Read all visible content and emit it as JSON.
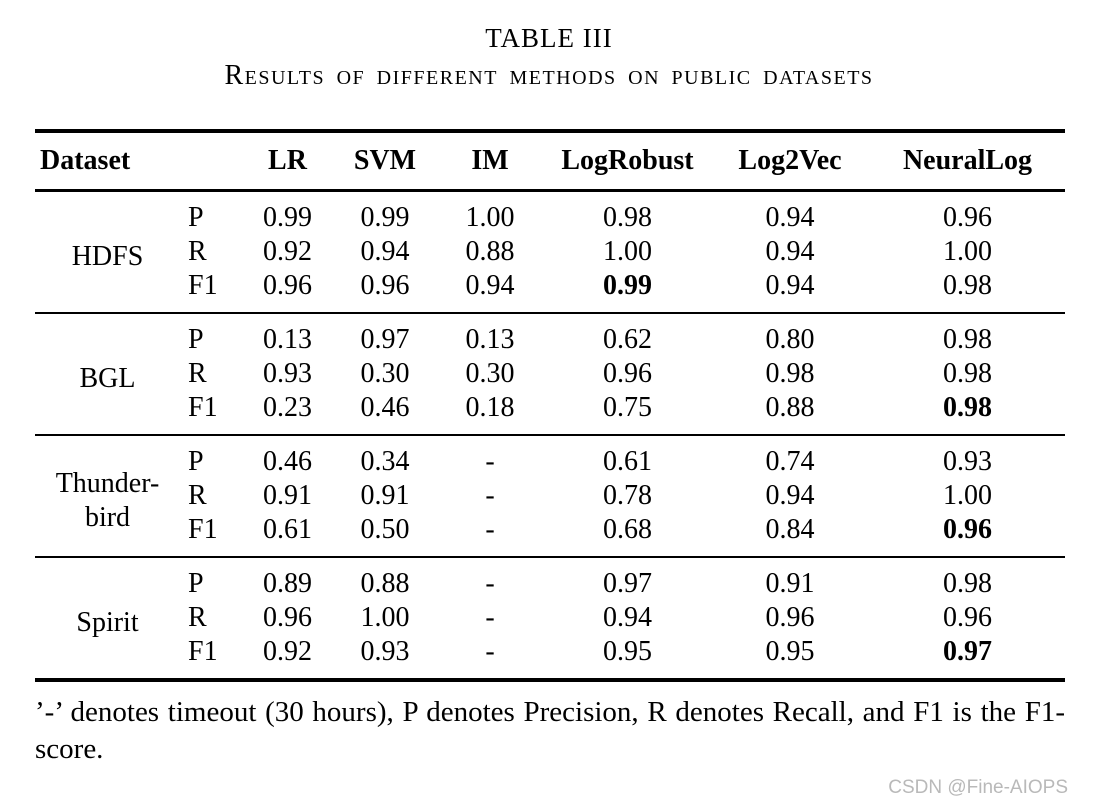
{
  "title": "TABLE III",
  "subtitle": "Results of different methods on public datasets",
  "table": {
    "header": {
      "dataset_label": "Dataset",
      "method_labels": [
        "LR",
        "SVM",
        "IM",
        "LogRobust",
        "Log2Vec",
        "NeuralLog"
      ]
    },
    "groups": [
      {
        "dataset_lines": [
          "HDFS"
        ],
        "rows": [
          {
            "metric": "P",
            "values": [
              "0.99",
              "0.99",
              "1.00",
              "0.98",
              "0.94",
              "0.96"
            ],
            "bold_index": -1
          },
          {
            "metric": "R",
            "values": [
              "0.92",
              "0.94",
              "0.88",
              "1.00",
              "0.94",
              "1.00"
            ],
            "bold_index": -1
          },
          {
            "metric": "F1",
            "values": [
              "0.96",
              "0.96",
              "0.94",
              "0.99",
              "0.94",
              "0.98"
            ],
            "bold_index": 3
          }
        ]
      },
      {
        "dataset_lines": [
          "BGL"
        ],
        "rows": [
          {
            "metric": "P",
            "values": [
              "0.13",
              "0.97",
              "0.13",
              "0.62",
              "0.80",
              "0.98"
            ],
            "bold_index": -1
          },
          {
            "metric": "R",
            "values": [
              "0.93",
              "0.30",
              "0.30",
              "0.96",
              "0.98",
              "0.98"
            ],
            "bold_index": -1
          },
          {
            "metric": "F1",
            "values": [
              "0.23",
              "0.46",
              "0.18",
              "0.75",
              "0.88",
              "0.98"
            ],
            "bold_index": 5
          }
        ]
      },
      {
        "dataset_lines": [
          "Thunder-",
          "bird"
        ],
        "rows": [
          {
            "metric": "P",
            "values": [
              "0.46",
              "0.34",
              "-",
              "0.61",
              "0.74",
              "0.93"
            ],
            "bold_index": -1
          },
          {
            "metric": "R",
            "values": [
              "0.91",
              "0.91",
              "-",
              "0.78",
              "0.94",
              "1.00"
            ],
            "bold_index": -1
          },
          {
            "metric": "F1",
            "values": [
              "0.61",
              "0.50",
              "-",
              "0.68",
              "0.84",
              "0.96"
            ],
            "bold_index": 5
          }
        ]
      },
      {
        "dataset_lines": [
          "Spirit"
        ],
        "rows": [
          {
            "metric": "P",
            "values": [
              "0.89",
              "0.88",
              "-",
              "0.97",
              "0.91",
              "0.98"
            ],
            "bold_index": -1
          },
          {
            "metric": "R",
            "values": [
              "0.96",
              "1.00",
              "-",
              "0.94",
              "0.96",
              "0.96"
            ],
            "bold_index": -1
          },
          {
            "metric": "F1",
            "values": [
              "0.92",
              "0.93",
              "-",
              "0.95",
              "0.95",
              "0.97"
            ],
            "bold_index": 5
          }
        ]
      }
    ]
  },
  "footnote": "’-’ denotes timeout (30 hours), P denotes Precision, R denotes Recall, and F1 is the F1-score.",
  "watermark": "CSDN @Fine-AIOPS"
}
